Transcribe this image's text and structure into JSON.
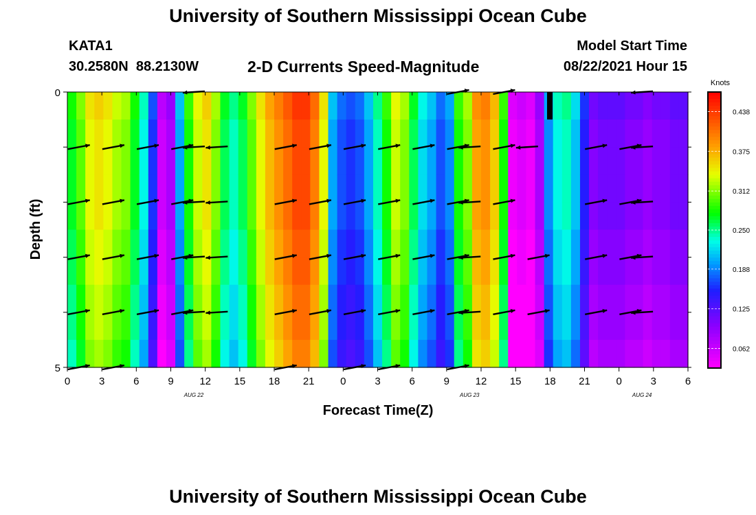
{
  "page": {
    "top_title": "University of Southern Mississippi Ocean Cube",
    "bottom_title": "University of Southern Mississippi Ocean Cube",
    "station": "KATA1",
    "coordinates": "30.2580N  88.2130W",
    "chart_title": "2-D Currents Speed-Magnitude",
    "model_label": "Model Start Time",
    "model_time": "08/22/2021 Hour 15"
  },
  "chart_data": {
    "type": "heatmap",
    "title": "2-D Currents Speed-Magnitude",
    "xlabel": "Forecast Time(Z)",
    "ylabel": "Depth (ft)",
    "x_tick_labels": [
      "0",
      "3",
      "6",
      "9",
      "12",
      "15",
      "18",
      "21",
      "0",
      "3",
      "6",
      "9",
      "12",
      "15",
      "18",
      "21",
      "0",
      "3",
      "6"
    ],
    "x_step_hours": 3,
    "x_range_hours": [
      0,
      54
    ],
    "date_labels": [
      {
        "label": "AUG  22",
        "hour": 11
      },
      {
        "label": "AUG  23",
        "hour": 35
      },
      {
        "label": "AUG  24",
        "hour": 50
      }
    ],
    "y_tick_labels": [
      "0",
      "5"
    ],
    "ylim": [
      0,
      5
    ],
    "colorbar": {
      "label": "Knots",
      "ticks": [
        "0.438",
        "0.375",
        "0.312",
        "0.250",
        "0.188",
        "0.125",
        "0.062"
      ],
      "min": 0.031,
      "max": 0.469
    },
    "speed_columns_knots": [
      0.27,
      0.3,
      0.34,
      0.35,
      0.34,
      0.32,
      0.31,
      0.27,
      0.23,
      0.16,
      0.06,
      0.08,
      0.2,
      0.28,
      0.33,
      0.35,
      0.31,
      0.26,
      0.24,
      0.26,
      0.3,
      0.34,
      0.37,
      0.39,
      0.41,
      0.43,
      0.43,
      0.4,
      0.34,
      0.2,
      0.17,
      0.16,
      0.17,
      0.2,
      0.24,
      0.28,
      0.33,
      0.31,
      0.26,
      0.22,
      0.2,
      0.17,
      0.19,
      0.28,
      0.31,
      0.38,
      0.39,
      0.36,
      0.28,
      0.04,
      0.05,
      0.04,
      0.08,
      0.19,
      0.23,
      0.24,
      0.21,
      0.15,
      0.1,
      0.11,
      0.11,
      0.11,
      0.1,
      0.1,
      0.09,
      0.1,
      0.1,
      0.11,
      0.11
    ],
    "depth_variation_knots": [
      0.01,
      0.0,
      0.0,
      -0.01,
      -0.02,
      -0.03
    ],
    "vectors": [
      {
        "hour": 1,
        "levels": [
          1,
          2,
          3,
          4,
          5
        ],
        "dir": "e"
      },
      {
        "hour": 4,
        "levels": [
          1,
          2,
          3,
          4,
          5
        ],
        "dir": "e"
      },
      {
        "hour": 7,
        "levels": [
          1,
          2,
          3,
          4
        ],
        "dir": "e"
      },
      {
        "hour": 10,
        "levels": [
          1,
          2,
          3,
          4
        ],
        "dir": "e"
      },
      {
        "hour": 11,
        "levels": [
          0,
          1,
          2,
          3,
          4
        ],
        "dir": "w"
      },
      {
        "hour": 13,
        "levels": [
          1,
          2,
          3,
          4
        ],
        "dir": "w"
      },
      {
        "hour": 19,
        "levels": [
          1,
          2,
          3,
          4,
          5
        ],
        "dir": "e"
      },
      {
        "hour": 22,
        "levels": [
          1,
          2,
          3,
          4
        ],
        "dir": "e"
      },
      {
        "hour": 25,
        "levels": [
          1,
          2,
          3,
          4,
          5
        ],
        "dir": "e"
      },
      {
        "hour": 28,
        "levels": [
          1,
          2,
          3,
          4,
          5
        ],
        "dir": "e"
      },
      {
        "hour": 31,
        "levels": [
          1,
          2,
          3,
          4
        ],
        "dir": "e"
      },
      {
        "hour": 34,
        "levels": [
          0,
          1,
          2,
          3,
          4,
          5
        ],
        "dir": "e"
      },
      {
        "hour": 35,
        "levels": [
          1,
          2,
          3,
          4
        ],
        "dir": "w"
      },
      {
        "hour": 38,
        "levels": [
          0,
          1,
          2,
          3,
          4
        ],
        "dir": "e"
      },
      {
        "hour": 40,
        "levels": [
          1
        ],
        "dir": "w"
      },
      {
        "hour": 41,
        "levels": [
          3,
          4
        ],
        "dir": "e"
      },
      {
        "hour": 46,
        "levels": [
          1,
          2,
          3,
          4
        ],
        "dir": "e"
      },
      {
        "hour": 49,
        "levels": [
          1,
          2,
          3,
          4
        ],
        "dir": "e"
      },
      {
        "hour": 50,
        "levels": [
          0,
          1,
          2,
          3,
          4
        ],
        "dir": "w"
      }
    ]
  },
  "colors": {
    "bar_marker": "#000000",
    "axis": "#000000"
  }
}
